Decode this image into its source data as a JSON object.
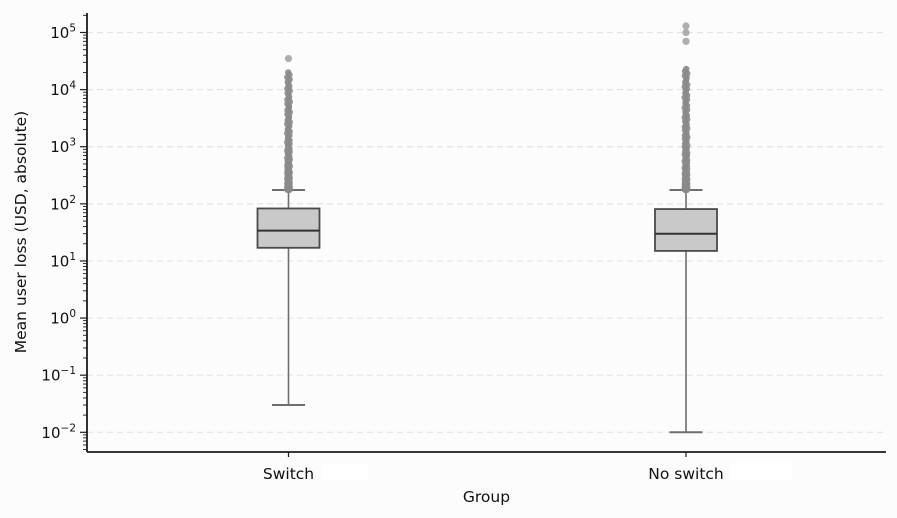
{
  "figure": {
    "background": "#fcfcfc",
    "artifact_patch_color": "#ffffff"
  },
  "chart_data": {
    "type": "box",
    "title": "",
    "xlabel": "Group",
    "ylabel": "Mean user loss (USD, absolute)",
    "yscale": "log",
    "ylim": [
      0.005,
      220000
    ],
    "ytick_exponents": [
      -2,
      -1,
      0,
      1,
      2,
      3,
      4,
      5
    ],
    "grid": {
      "axis": "y",
      "style": "dashed"
    },
    "legend": "none",
    "categories": [
      "Switch",
      "No switch"
    ],
    "series": [
      {
        "name": "Switch",
        "whisker_low": 0.03,
        "q1": 17,
        "median": 34,
        "q3": 83,
        "whisker_high": 175,
        "dense_outlier_range": [
          175,
          20000
        ],
        "dense_outlier_count": 80,
        "isolated_outliers": [
          35000
        ]
      },
      {
        "name": "No switch",
        "whisker_low": 0.01,
        "q1": 15,
        "median": 30,
        "q3": 81,
        "whisker_high": 175,
        "dense_outlier_range": [
          175,
          23000
        ],
        "dense_outlier_count": 85,
        "isolated_outliers": [
          70000,
          100000,
          130000
        ]
      }
    ],
    "colors": {
      "box_fill": "#c9c9c9",
      "box_edge": "#4a4a4a",
      "median": "#333333",
      "whisker": "#6e6e6e",
      "cap": "#6e6e6e",
      "outlier": "#8a8a8a",
      "isolated_outlier": "#9a9a9a",
      "axis": "#1c1c1c",
      "grid": "#e4e4e4",
      "tick_label": "#111111"
    }
  }
}
